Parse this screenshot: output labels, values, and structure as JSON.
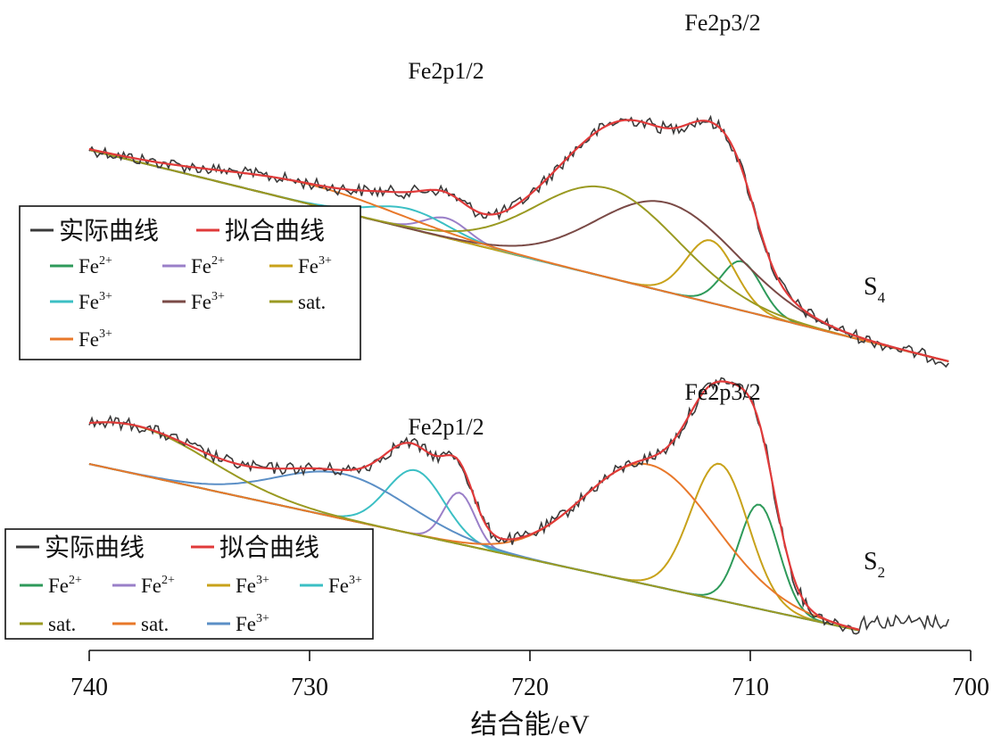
{
  "chart_data": [
    {
      "type": "line",
      "sample": "S",
      "sample_sub": "4",
      "peak_labels": [
        {
          "text": "Fe2p1/2",
          "x": 724.0
        },
        {
          "text": "Fe2p3/2",
          "x": 711.5
        }
      ],
      "legend": [
        {
          "name": "实际曲线",
          "color": "#3a3a3a"
        },
        {
          "name": "拟合曲线",
          "color": "#e03a3a"
        },
        {
          "name": "Fe",
          "sup": "2+",
          "color": "#2e9a5a"
        },
        {
          "name": "Fe",
          "sup": "2+",
          "color": "#9a7fc8"
        },
        {
          "name": "Fe",
          "sup": "3+",
          "color": "#c8a21a"
        },
        {
          "name": "Fe",
          "sup": "3+",
          "color": "#3bbfc4"
        },
        {
          "name": "Fe",
          "sup": "3+",
          "color": "#7a4a46"
        },
        {
          "name": "sat.",
          "color": "#9a9a22"
        },
        {
          "name": "Fe",
          "sup": "3+",
          "color": "#e8782a"
        }
      ],
      "components": [
        {
          "center": 710.4,
          "width": 0.9,
          "amp": 0.55,
          "color": "#2e9a5a"
        },
        {
          "center": 723.8,
          "width": 1.0,
          "amp": 0.22,
          "color": "#9a7fc8"
        },
        {
          "center": 711.8,
          "width": 1.1,
          "amp": 0.7,
          "color": "#c8a21a"
        },
        {
          "center": 725.5,
          "width": 1.8,
          "amp": 0.22,
          "color": "#3bbfc4"
        },
        {
          "center": 713.8,
          "width": 3.2,
          "amp": 1.0,
          "color": "#7a4a46"
        },
        {
          "center": 716.5,
          "width": 3.2,
          "amp": 1.0,
          "color": "#9a9a22"
        },
        {
          "center": 730.0,
          "width": 4.0,
          "amp": 0.22,
          "color": "#e8782a"
        }
      ]
    },
    {
      "type": "line",
      "sample": "S",
      "sample_sub": "2",
      "peak_labels": [
        {
          "text": "Fe2p1/2",
          "x": 724.0
        },
        {
          "text": "Fe2p3/2",
          "x": 711.5
        }
      ],
      "legend": [
        {
          "name": "实际曲线",
          "color": "#3a3a3a"
        },
        {
          "name": "拟合曲线",
          "color": "#e03a3a"
        },
        {
          "name": "Fe",
          "sup": "2+",
          "color": "#2e9a5a"
        },
        {
          "name": "Fe",
          "sup": "2+",
          "color": "#9a7fc8"
        },
        {
          "name": "Fe",
          "sup": "3+",
          "color": "#c8a21a"
        },
        {
          "name": "Fe",
          "sup": "3+",
          "color": "#3bbfc4"
        },
        {
          "name": "sat.",
          "color": "#9a9a22"
        },
        {
          "name": "sat.",
          "color": "#e8782a"
        },
        {
          "name": "Fe",
          "sup": "3+",
          "color": "#5b8fc6"
        }
      ],
      "components": [
        {
          "center": 709.6,
          "width": 0.9,
          "amp": 0.65,
          "color": "#2e9a5a"
        },
        {
          "center": 723.2,
          "width": 0.7,
          "amp": 0.32,
          "color": "#9a7fc8"
        },
        {
          "center": 711.4,
          "width": 1.3,
          "amp": 0.85,
          "color": "#c8a21a"
        },
        {
          "center": 725.2,
          "width": 1.3,
          "amp": 0.4,
          "color": "#3bbfc4"
        },
        {
          "center": 728.5,
          "width": 3.0,
          "amp": 0.28,
          "color": "#5b8fc6"
        },
        {
          "center": 714.6,
          "width": 3.0,
          "amp": 0.75,
          "color": "#e8782a"
        },
        {
          "center": 738.0,
          "width": 3.5,
          "amp": 0.3,
          "color": "#9a9a22"
        }
      ]
    }
  ],
  "x_axis": {
    "label": "结合能/eV",
    "ticks": [
      "740",
      "730",
      "720",
      "710",
      "700"
    ],
    "range": [
      740,
      700
    ]
  }
}
